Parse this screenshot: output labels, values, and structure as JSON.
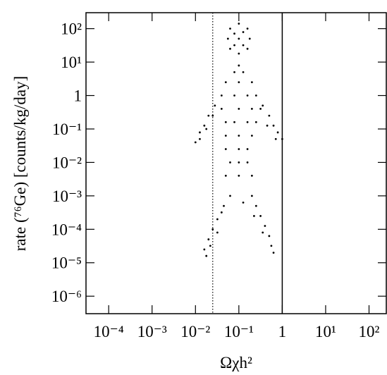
{
  "chart_data": {
    "type": "scatter",
    "xlabel": "Ωχh²",
    "ylabel": "rate (⁷⁶Ge) [counts/kg/day]",
    "xscale": "log",
    "yscale": "log",
    "xlim": [
      3e-05,
      250
    ],
    "ylim": [
      3e-07,
      300
    ],
    "xticks": [
      {
        "value": 0.0001,
        "label": "10⁻⁴"
      },
      {
        "value": 0.001,
        "label": "10⁻³"
      },
      {
        "value": 0.01,
        "label": "10⁻²"
      },
      {
        "value": 0.1,
        "label": "10⁻¹"
      },
      1,
      {
        "value": 10,
        "label": "10¹"
      },
      {
        "value": 100,
        "label": "10²"
      }
    ],
    "yticks": [
      {
        "value": 100,
        "label": "10²"
      },
      {
        "value": 10,
        "label": "10¹"
      },
      1,
      {
        "value": 0.1,
        "label": "10⁻¹"
      },
      {
        "value": 0.01,
        "label": "10⁻²"
      },
      {
        "value": 0.001,
        "label": "10⁻³"
      },
      {
        "value": 0.0001,
        "label": "10⁻⁴"
      },
      {
        "value": 1e-05,
        "label": "10⁻⁵"
      },
      {
        "value": 1e-06,
        "label": "10⁻⁶"
      }
    ],
    "vlines": [
      {
        "value": 0.025,
        "style": "dotted"
      },
      {
        "value": 1,
        "style": "solid"
      }
    ],
    "color": "#000000",
    "x": [
      0.1,
      0.158,
      0.063,
      0.178,
      0.056,
      0.158,
      0.063,
      0.1,
      0.1,
      0.126,
      0.079,
      0.126,
      0.079,
      0.1,
      0.079,
      0.126,
      0.05,
      0.1,
      0.2,
      0.04,
      0.079,
      0.158,
      0.25,
      0.04,
      0.1,
      0.2,
      0.316,
      0.05,
      0.079,
      0.158,
      0.25,
      0.05,
      0.1,
      0.2,
      0.05,
      0.1,
      0.158,
      0.063,
      0.1,
      0.158,
      0.05,
      0.1,
      0.2,
      0.028,
      0.02,
      0.016,
      0.0126,
      0.01,
      0.025,
      0.0178,
      0.0126,
      0.355,
      0.5,
      0.63,
      0.79,
      1,
      0.45,
      0.71,
      0.063,
      0.045,
      0.032,
      0.025,
      0.02,
      0.016,
      0.022,
      0.032,
      0.04,
      0.0178,
      0.2,
      0.25,
      0.316,
      0.4,
      0.5,
      0.56,
      0.63,
      0.355,
      0.224,
      0.126
    ],
    "y": [
      141,
      100,
      100,
      50,
      50,
      25,
      25,
      18,
      50,
      79,
      32,
      32,
      71,
      7.9,
      5,
      5,
      2.5,
      2.5,
      2.5,
      1,
      1,
      1,
      1,
      0.4,
      0.4,
      0.4,
      0.4,
      0.16,
      0.16,
      0.16,
      0.16,
      0.063,
      0.063,
      0.063,
      0.025,
      0.025,
      0.025,
      0.01,
      0.01,
      0.01,
      0.004,
      0.004,
      0.004,
      0.5,
      0.25,
      0.126,
      0.079,
      0.04,
      0.25,
      0.1,
      0.05,
      0.5,
      0.25,
      0.126,
      0.079,
      0.05,
      0.126,
      0.05,
      0.001,
      0.0005,
      0.0002,
      0.0001,
      5e-05,
      2.5e-05,
      3.2e-05,
      8e-05,
      0.00032,
      1.6e-05,
      0.001,
      0.0005,
      0.00025,
      0.000126,
      6.3e-05,
      3.2e-05,
      2e-05,
      8e-05,
      0.00025,
      0.00063
    ]
  }
}
